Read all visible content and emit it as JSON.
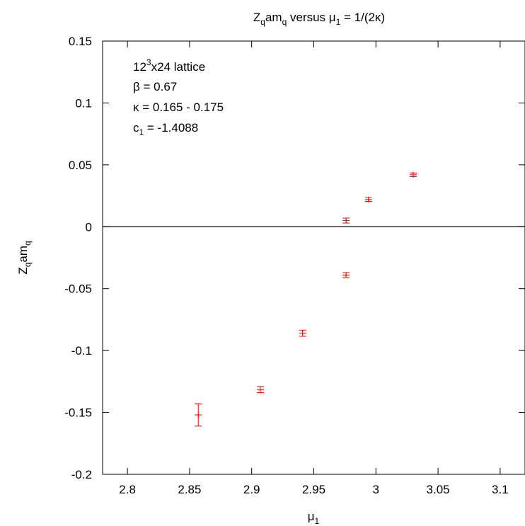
{
  "chart_data": {
    "type": "scatter",
    "title": {
      "main": "Z",
      "sub1": "q",
      "mid1": "am",
      "sub2": "q",
      "mid2": " versus μ",
      "sub3": "1",
      "tail": " = 1/(2κ)"
    },
    "xlabel": {
      "main": "μ",
      "sub": "1"
    },
    "ylabel": {
      "main": "Z",
      "sub1": "q",
      "mid": "am",
      "sub2": "q"
    },
    "xlim": [
      2.78,
      3.12
    ],
    "ylim": [
      -0.2,
      0.15
    ],
    "xticks": [
      2.8,
      2.85,
      2.9,
      2.95,
      3.0,
      3.05,
      3.1
    ],
    "xtick_labels": [
      "2.8",
      "2.85",
      "2.9",
      "2.95",
      "3",
      "3.05",
      "3.1"
    ],
    "yticks": [
      -0.2,
      -0.15,
      -0.1,
      -0.05,
      0,
      0.05,
      0.1,
      0.15
    ],
    "ytick_labels": [
      "-0.2",
      "-0.15",
      "-0.1",
      "-0.05",
      "0",
      "0.05",
      "0.1",
      "0.15"
    ],
    "zero_line": true,
    "grid": false,
    "series": [
      {
        "color": "#ff0000",
        "points": [
          {
            "x": 2.857,
            "y": -0.152,
            "err": 0.009
          },
          {
            "x": 2.907,
            "y": -0.1315,
            "err": 0.0025
          },
          {
            "x": 2.941,
            "y": -0.086,
            "err": 0.0025
          },
          {
            "x": 2.976,
            "y": -0.039,
            "err": 0.002
          },
          {
            "x": 2.976,
            "y": 0.005,
            "err": 0.002
          },
          {
            "x": 2.994,
            "y": 0.022,
            "err": 0.0015
          },
          {
            "x": 3.03,
            "y": 0.042,
            "err": 0.0015
          }
        ]
      }
    ],
    "annotations": {
      "line1": {
        "main": "12",
        "sup": "3",
        "tail": "x24 lattice"
      },
      "line2": "β = 0.67",
      "line3": "κ = 0.165 - 0.175",
      "line4": {
        "main": "c",
        "sub": "1",
        "tail": " = -1.4088"
      }
    }
  }
}
